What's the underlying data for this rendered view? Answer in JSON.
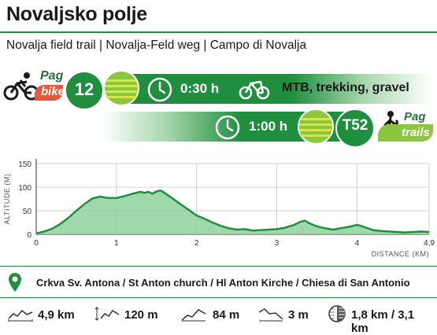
{
  "title": "Novaljsko polje",
  "subtitle": "Novalja field trail  |  Novalja-Feld weg  |  Campo di Novalja",
  "bike_route": {
    "logo_line1": "Pag",
    "logo_line2": "bike",
    "number": "12",
    "time": "0:30 h",
    "types": "MTB, trekking, gravel",
    "icons": [
      "cyclist-icon",
      "stopwatch-icon",
      "bicycle-icon"
    ]
  },
  "trail_route": {
    "time": "1:00 h",
    "code": "T52",
    "logo_line1": "Pag",
    "logo_line2": "trails",
    "icons": [
      "stopwatch-icon",
      "hiker-icon"
    ]
  },
  "colors": {
    "green": "#1f8f3f",
    "light_green": "#8cc63f",
    "orange": "#e8573c"
  },
  "chart_data": {
    "type": "area",
    "ylabel": "ALTITUDE (M)",
    "xlabel": "DISTANCE (KM)",
    "xlim": [
      0,
      4.9
    ],
    "ylim": [
      0,
      150
    ],
    "xticks": [
      "0",
      "1",
      "2",
      "3",
      "4",
      "4,9"
    ],
    "yticks": [
      "0",
      "50",
      "100",
      "150"
    ],
    "grid": true,
    "x": [
      0,
      0.1,
      0.2,
      0.3,
      0.4,
      0.5,
      0.6,
      0.7,
      0.8,
      0.9,
      1.0,
      1.1,
      1.2,
      1.3,
      1.35,
      1.4,
      1.45,
      1.5,
      1.55,
      1.6,
      1.7,
      1.8,
      1.9,
      2.0,
      2.1,
      2.2,
      2.3,
      2.4,
      2.5,
      2.6,
      2.7,
      2.8,
      2.9,
      3.0,
      3.1,
      3.2,
      3.3,
      3.35,
      3.4,
      3.5,
      3.6,
      3.7,
      3.8,
      3.9,
      4.0,
      4.05,
      4.1,
      4.2,
      4.3,
      4.4,
      4.5,
      4.6,
      4.7,
      4.8,
      4.9
    ],
    "y": [
      2,
      6,
      12,
      22,
      35,
      50,
      64,
      76,
      80,
      77,
      77,
      81,
      86,
      90,
      88,
      90,
      86,
      91,
      93,
      88,
      76,
      64,
      52,
      40,
      33,
      25,
      18,
      13,
      10,
      11,
      8,
      9,
      10,
      11,
      14,
      19,
      27,
      29,
      24,
      17,
      13,
      10,
      13,
      16,
      20,
      18,
      15,
      9,
      7,
      6,
      5,
      4,
      5,
      6,
      5
    ]
  },
  "location": {
    "icon": "map-pin-icon",
    "text": "Crkva Sv. Antona / St Anton church / Hl Anton Kirche / Chiesa di San Antonio"
  },
  "stats": [
    {
      "icon": "distance-profile-icon",
      "value": "4,9 km"
    },
    {
      "icon": "elevation-range-icon",
      "value": "120 m"
    },
    {
      "icon": "ascent-profile-icon",
      "value": "84 m"
    },
    {
      "icon": "descent-profile-icon",
      "value": "3 m"
    },
    {
      "icon": "surface-type-icon",
      "value": "1,8 km / 3,1 km"
    }
  ]
}
